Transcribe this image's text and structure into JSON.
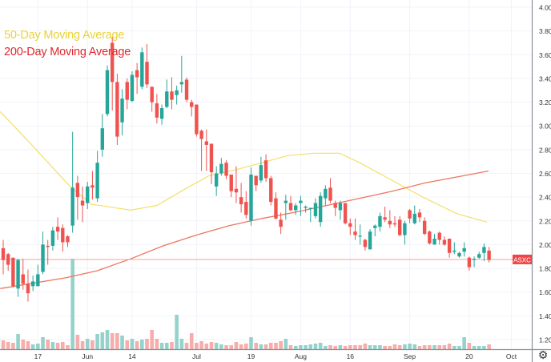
{
  "chart_data": {
    "type": "candlestick",
    "symbol": "ASXC",
    "last_price": 1.875,
    "colors": {
      "up": "#26a69a",
      "down": "#ef5350",
      "volume_up": "#8fd0c8",
      "volume_down": "#f6a9a6",
      "ma50": "#f3df6a",
      "ma200": "#ee7560",
      "price_line": "#f3a59b",
      "price_tag": "#ef4444",
      "grid": "#f0f3fa"
    },
    "legend": [
      {
        "label": "50-Day Moving Average",
        "color": "#e8d33a"
      },
      {
        "label": "200-Day Moving Average",
        "color": "#e3262b"
      }
    ],
    "legend_placement": "top-left",
    "grid": true,
    "ylim": [
      1.2,
      4.0
    ],
    "yticks": [
      "4.00",
      "3.80",
      "3.60",
      "3.40",
      "3.20",
      "3.00",
      "2.80",
      "2.60",
      "2.40",
      "2.20",
      "2.00",
      "1.80",
      "1.60",
      "1.40",
      "1.20"
    ],
    "xticks": [
      {
        "label": "17",
        "at_candle": 8
      },
      {
        "label": "Jun",
        "at_candle": 18
      },
      {
        "label": "14",
        "at_candle": 27
      },
      {
        "label": "Jul",
        "at_candle": 40
      },
      {
        "label": "19",
        "at_candle": 51
      },
      {
        "label": "Aug",
        "at_candle": 61
      },
      {
        "label": "16",
        "at_candle": 71
      },
      {
        "label": "Sep",
        "at_candle": 83
      },
      {
        "label": "20",
        "at_candle": 95
      },
      {
        "label": "Oct",
        "at_candle": 103.5
      }
    ],
    "candles_ohlc": [
      [
        1.95,
        2.05,
        1.9,
        2.02
      ],
      [
        1.97,
        2.04,
        1.75,
        1.87
      ],
      [
        1.92,
        1.93,
        1.78,
        1.83
      ],
      [
        1.89,
        1.89,
        1.64,
        1.65
      ],
      [
        1.63,
        1.88,
        1.56,
        1.87
      ],
      [
        1.75,
        1.88,
        1.62,
        1.67
      ],
      [
        1.67,
        1.79,
        1.52,
        1.59
      ],
      [
        1.65,
        1.74,
        1.61,
        1.69
      ],
      [
        1.65,
        1.83,
        1.65,
        1.75
      ],
      [
        1.77,
        2.11,
        1.75,
        2.0
      ],
      [
        1.99,
        2.04,
        1.83,
        1.98
      ],
      [
        1.99,
        2.15,
        1.95,
        2.12
      ],
      [
        2.15,
        2.23,
        2.04,
        2.11
      ],
      [
        2.14,
        2.17,
        1.94,
        2.02
      ],
      [
        2.07,
        2.08,
        1.98,
        2.02
      ],
      [
        2.16,
        2.95,
        2.1,
        2.48
      ],
      [
        2.52,
        2.58,
        2.21,
        2.4
      ],
      [
        2.37,
        2.49,
        2.19,
        2.33
      ],
      [
        2.35,
        2.53,
        2.3,
        2.49
      ],
      [
        2.5,
        2.62,
        2.38,
        2.48
      ],
      [
        2.39,
        2.79,
        2.36,
        2.69
      ],
      [
        2.8,
        3.1,
        2.74,
        2.98
      ],
      [
        3.1,
        3.51,
        3.08,
        3.47
      ],
      [
        3.7,
        3.75,
        3.13,
        3.37
      ],
      [
        3.37,
        3.44,
        2.84,
        2.91
      ],
      [
        3.03,
        3.31,
        2.92,
        3.23
      ],
      [
        3.37,
        3.4,
        3.14,
        3.22
      ],
      [
        3.21,
        3.46,
        3.2,
        3.43
      ],
      [
        3.47,
        3.53,
        3.27,
        3.41
      ],
      [
        3.33,
        3.66,
        3.31,
        3.62
      ],
      [
        3.54,
        3.69,
        3.32,
        3.35
      ],
      [
        3.33,
        3.33,
        3.12,
        3.2
      ],
      [
        3.19,
        3.27,
        3.02,
        3.07
      ],
      [
        3.06,
        3.18,
        3.01,
        3.15
      ],
      [
        3.16,
        3.39,
        3.15,
        3.29
      ],
      [
        3.29,
        3.41,
        3.14,
        3.22
      ],
      [
        3.26,
        3.34,
        3.18,
        3.3
      ],
      [
        3.35,
        3.59,
        3.28,
        3.37
      ],
      [
        3.39,
        3.41,
        3.2,
        3.22
      ],
      [
        3.2,
        3.22,
        3.08,
        3.16
      ],
      [
        3.18,
        3.18,
        2.91,
        2.93
      ],
      [
        2.96,
        2.97,
        2.62,
        2.89
      ],
      [
        2.87,
        2.97,
        2.62,
        2.84
      ],
      [
        2.85,
        2.85,
        2.51,
        2.61
      ],
      [
        2.49,
        2.66,
        2.41,
        2.6
      ],
      [
        2.6,
        2.73,
        2.58,
        2.68
      ],
      [
        2.69,
        2.71,
        2.55,
        2.58
      ],
      [
        2.59,
        2.59,
        2.4,
        2.45
      ],
      [
        2.47,
        2.66,
        2.35,
        2.44
      ],
      [
        2.4,
        2.52,
        2.27,
        2.34
      ],
      [
        2.36,
        2.45,
        2.22,
        2.25
      ],
      [
        2.2,
        2.65,
        2.16,
        2.59
      ],
      [
        2.58,
        2.58,
        2.45,
        2.5
      ],
      [
        2.54,
        2.74,
        2.52,
        2.67
      ],
      [
        2.71,
        2.76,
        2.53,
        2.56
      ],
      [
        2.56,
        2.58,
        2.33,
        2.36
      ],
      [
        2.39,
        2.44,
        2.21,
        2.22
      ],
      [
        2.21,
        2.27,
        2.09,
        2.15
      ],
      [
        2.35,
        2.42,
        2.21,
        2.37
      ],
      [
        2.35,
        2.41,
        2.28,
        2.29
      ],
      [
        2.29,
        2.35,
        2.25,
        2.33
      ],
      [
        2.35,
        2.41,
        2.24,
        2.37
      ],
      [
        2.31,
        2.33,
        2.27,
        2.32
      ],
      [
        2.3,
        2.31,
        2.19,
        2.31
      ],
      [
        2.24,
        2.39,
        2.22,
        2.35
      ],
      [
        2.19,
        2.44,
        2.15,
        2.41
      ],
      [
        2.39,
        2.5,
        2.33,
        2.47
      ],
      [
        2.48,
        2.56,
        2.35,
        2.37
      ],
      [
        2.35,
        2.37,
        2.24,
        2.31
      ],
      [
        2.29,
        2.37,
        2.21,
        2.35
      ],
      [
        2.35,
        2.35,
        2.17,
        2.18
      ],
      [
        2.18,
        2.22,
        2.08,
        2.15
      ],
      [
        2.11,
        2.22,
        2.04,
        2.08
      ],
      [
        2.07,
        2.17,
        2.0,
        2.075
      ],
      [
        2.04,
        2.05,
        1.95,
        1.98
      ],
      [
        1.96,
        2.13,
        1.96,
        2.11
      ],
      [
        2.14,
        2.17,
        2.07,
        2.16
      ],
      [
        2.15,
        2.27,
        2.11,
        2.24
      ],
      [
        2.23,
        2.32,
        2.19,
        2.21
      ],
      [
        2.2,
        2.29,
        2.14,
        2.17
      ],
      [
        2.18,
        2.24,
        2.15,
        2.17
      ],
      [
        2.21,
        2.24,
        2.07,
        2.08
      ],
      [
        2.08,
        2.2,
        2.0,
        2.18
      ],
      [
        2.29,
        2.3,
        2.18,
        2.22
      ],
      [
        2.18,
        2.33,
        2.17,
        2.26
      ],
      [
        2.27,
        2.3,
        2.19,
        2.23
      ],
      [
        2.2,
        2.23,
        2.08,
        2.09
      ],
      [
        2.11,
        2.12,
        2.0,
        2.01
      ],
      [
        2.0,
        2.09,
        2.0,
        2.05
      ],
      [
        2.1,
        2.11,
        2.0,
        2.04
      ],
      [
        2.04,
        2.07,
        1.99,
        2.0
      ],
      [
        2.05,
        2.05,
        1.89,
        1.93
      ],
      [
        1.94,
        2.02,
        1.92,
        1.95
      ],
      [
        1.9,
        1.94,
        1.89,
        1.93
      ],
      [
        1.94,
        2.02,
        1.9,
        1.97
      ],
      [
        1.89,
        1.9,
        1.78,
        1.81
      ],
      [
        1.87,
        1.9,
        1.81,
        1.88
      ],
      [
        1.89,
        1.94,
        1.88,
        1.92
      ],
      [
        1.93,
        2.01,
        1.86,
        1.98
      ],
      [
        1.95,
        1.98,
        1.85,
        1.87
      ]
    ],
    "volume_relative": [
      14,
      11,
      9,
      8,
      19,
      12,
      10,
      6,
      7,
      15,
      12,
      9,
      8,
      9,
      5,
      113,
      18,
      10,
      13,
      11,
      19,
      21,
      24,
      20,
      20,
      17,
      11,
      13,
      10,
      12,
      13,
      24,
      13,
      8,
      8,
      9,
      43,
      13,
      8,
      20,
      8,
      10,
      7,
      9,
      8,
      6,
      5,
      5,
      9,
      6,
      7,
      15,
      8,
      6,
      6,
      8,
      8,
      10,
      13,
      5,
      4,
      5,
      5,
      6,
      7,
      8,
      4,
      5,
      4,
      5,
      4,
      5,
      5,
      5,
      7,
      5,
      5,
      5,
      4,
      4,
      6,
      5,
      6,
      7,
      6,
      4,
      5,
      5,
      5,
      5,
      5,
      7,
      4,
      4,
      15,
      8,
      4,
      4,
      4,
      6
    ],
    "volume_up": [
      1,
      0,
      0,
      0,
      1,
      0,
      0,
      1,
      1,
      1,
      0,
      1,
      0,
      0,
      0,
      1,
      0,
      0,
      1,
      0,
      1,
      1,
      1,
      0,
      0,
      1,
      0,
      1,
      0,
      1,
      0,
      0,
      0,
      1,
      1,
      0,
      1,
      1,
      0,
      0,
      0,
      0,
      0,
      0,
      1,
      1,
      0,
      0,
      0,
      0,
      0,
      1,
      0,
      1,
      0,
      0,
      0,
      0,
      1,
      0,
      1,
      1,
      1,
      1,
      1,
      1,
      1,
      0,
      0,
      1,
      0,
      0,
      0,
      0,
      0,
      1,
      1,
      1,
      0,
      0,
      0,
      0,
      1,
      1,
      1,
      0,
      0,
      0,
      1,
      0,
      0,
      0,
      1,
      1,
      1,
      0,
      1,
      1,
      1,
      0
    ],
    "ma50": [
      [
        -0.6,
        3.12
      ],
      [
        6,
        2.83
      ],
      [
        12.6,
        2.53
      ],
      [
        14,
        2.47
      ],
      [
        17.8,
        2.34
      ],
      [
        25.7,
        2.29
      ],
      [
        31,
        2.33
      ],
      [
        36.3,
        2.46
      ],
      [
        41.5,
        2.58
      ],
      [
        46.8,
        2.63
      ],
      [
        52.2,
        2.69
      ],
      [
        57.4,
        2.75
      ],
      [
        62.7,
        2.77
      ],
      [
        67.9,
        2.77
      ],
      [
        71.9,
        2.69
      ],
      [
        78.5,
        2.54
      ],
      [
        85.1,
        2.39
      ],
      [
        91.6,
        2.26
      ],
      [
        97.6,
        2.19
      ]
    ],
    "ma200": [
      [
        -0.6,
        1.63
      ],
      [
        12.6,
        1.72
      ],
      [
        19,
        1.78
      ],
      [
        25.7,
        1.88
      ],
      [
        32.3,
        1.99
      ],
      [
        38.9,
        2.08
      ],
      [
        45.6,
        2.16
      ],
      [
        52.2,
        2.22
      ],
      [
        58.6,
        2.27
      ],
      [
        65.3,
        2.33
      ],
      [
        71.9,
        2.39
      ],
      [
        78.5,
        2.45
      ],
      [
        85.1,
        2.52
      ],
      [
        91.6,
        2.57
      ],
      [
        97.9,
        2.62
      ]
    ]
  },
  "settings_icon": "gear-icon"
}
